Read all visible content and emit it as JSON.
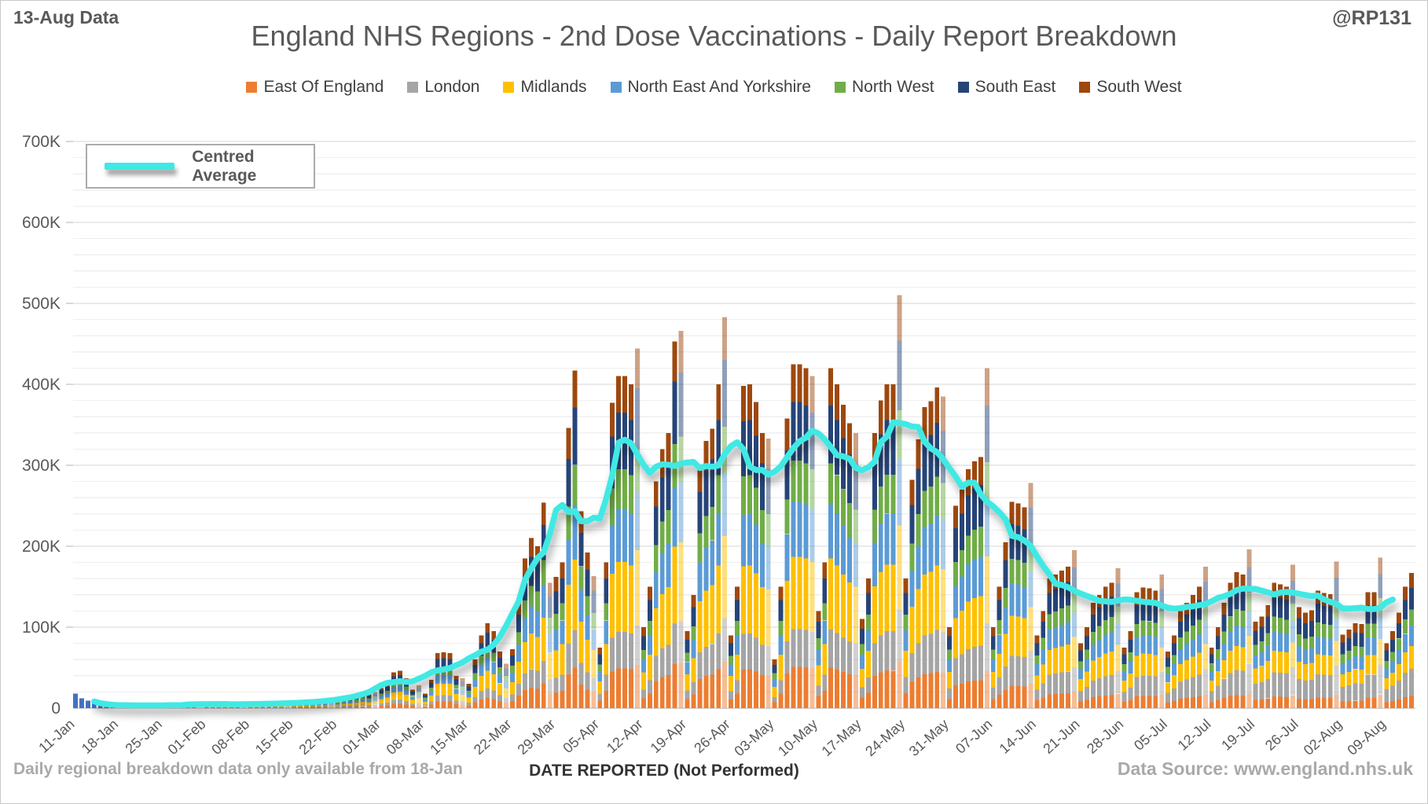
{
  "header": {
    "data_label": "13-Aug Data",
    "title": "England NHS Regions - 2nd Dose Vaccinations - Daily Report Breakdown",
    "handle": "@RP131"
  },
  "avg_legend_label": "Centred Average",
  "footer": {
    "note": "Daily regional breakdown data only available from 18-Jan",
    "xlabel": "DATE REPORTED (Not Performed)",
    "source": "Data Source: www.england.nhs.uk"
  },
  "chart_data": {
    "type": "bar",
    "stacked": true,
    "title": "England NHS Regions - 2nd Dose Vaccinations - Daily Report Breakdown",
    "ylabel": "",
    "xlabel": "DATE REPORTED (Not Performed)",
    "ylim": [
      0,
      700000
    ],
    "y_tick_step": 100000,
    "minor_grid_step": 20000,
    "grid": true,
    "units": "doses per daily report",
    "start_date": "11-Jan",
    "end_date": "13-Aug",
    "x_tick_labels": [
      "11-Jan",
      "18-Jan",
      "25-Jan",
      "01-Feb",
      "08-Feb",
      "15-Feb",
      "22-Feb",
      "01-Mar",
      "08-Mar",
      "15-Mar",
      "22-Mar",
      "29-Mar",
      "05-Apr",
      "12-Apr",
      "19-Apr",
      "26-Apr",
      "03-May",
      "10-May",
      "17-May",
      "24-May",
      "31-May",
      "07-Jun",
      "14-Jun",
      "21-Jun",
      "28-Jun",
      "05-Jul",
      "12-Jul",
      "19-Jul",
      "26-Jul",
      "02-Aug",
      "09-Aug"
    ],
    "regions": [
      {
        "name": "East Of England",
        "color": "#ED7D31",
        "share_early": 0.12,
        "share_late": 0.09
      },
      {
        "name": "London",
        "color": "#A5A5A5",
        "share_early": 0.11,
        "share_late": 0.2
      },
      {
        "name": "Midlands",
        "color": "#FFC000",
        "share_early": 0.21,
        "share_late": 0.17
      },
      {
        "name": "North East And Yorkshire",
        "color": "#5B9BD5",
        "share_early": 0.16,
        "share_late": 0.15
      },
      {
        "name": "North West",
        "color": "#70AD47",
        "share_early": 0.12,
        "share_late": 0.12
      },
      {
        "name": "South East",
        "color": "#264478",
        "share_early": 0.17,
        "share_late": 0.16
      },
      {
        "name": "South West",
        "color": "#9E480E",
        "share_early": 0.11,
        "share_late": 0.11
      }
    ],
    "pre_breakdown": {
      "days": 7,
      "color": "#4472C4",
      "note": "first week shown as single national series"
    },
    "muted_rule": "sunday-reports drawn pale (50% tint)",
    "centred_average": {
      "label": "Centred Average",
      "color": "#3FE9E4",
      "window": 7
    },
    "totals_thousands": [
      18,
      12,
      9,
      7,
      5,
      4,
      3,
      3,
      3,
      4,
      4,
      4,
      3,
      3,
      3,
      3,
      4,
      4,
      5,
      4,
      3,
      8,
      5,
      5,
      5,
      5,
      4,
      4,
      5,
      5,
      6,
      6,
      6,
      5,
      5,
      6,
      7,
      7,
      8,
      9,
      8,
      8,
      10,
      12,
      13,
      15,
      18,
      17,
      20,
      25,
      30,
      44,
      46,
      37,
      23,
      28,
      18,
      35,
      68,
      69,
      68,
      40,
      37,
      30,
      60,
      90,
      105,
      95,
      70,
      55,
      73,
      130,
      185,
      210,
      200,
      254,
      155,
      162,
      180,
      346,
      417,
      243,
      192,
      163,
      75,
      180,
      377,
      410,
      410,
      400,
      444,
      100,
      150,
      280,
      320,
      340,
      453,
      466,
      95,
      140,
      300,
      330,
      345,
      400,
      483,
      90,
      150,
      398,
      400,
      378,
      340,
      333,
      60,
      150,
      358,
      425,
      425,
      420,
      410,
      120,
      180,
      420,
      400,
      375,
      352,
      340,
      110,
      160,
      340,
      380,
      400,
      400,
      510,
      160,
      282,
      332,
      372,
      379,
      396,
      385,
      100,
      250,
      270,
      295,
      305,
      310,
      420,
      100,
      150,
      205,
      255,
      253,
      248,
      278,
      90,
      120,
      160,
      165,
      170,
      175,
      195,
      80,
      100,
      130,
      140,
      150,
      155,
      173,
      75,
      95,
      143,
      149,
      148,
      145,
      165,
      70,
      90,
      120,
      130,
      140,
      150,
      175,
      75,
      100,
      130,
      155,
      168,
      165,
      196,
      107,
      113,
      127,
      155,
      153,
      150,
      177,
      125,
      118,
      121,
      145,
      142,
      141,
      181,
      91,
      97,
      105,
      104,
      143,
      143,
      186,
      80,
      95,
      118,
      150,
      167
    ]
  }
}
